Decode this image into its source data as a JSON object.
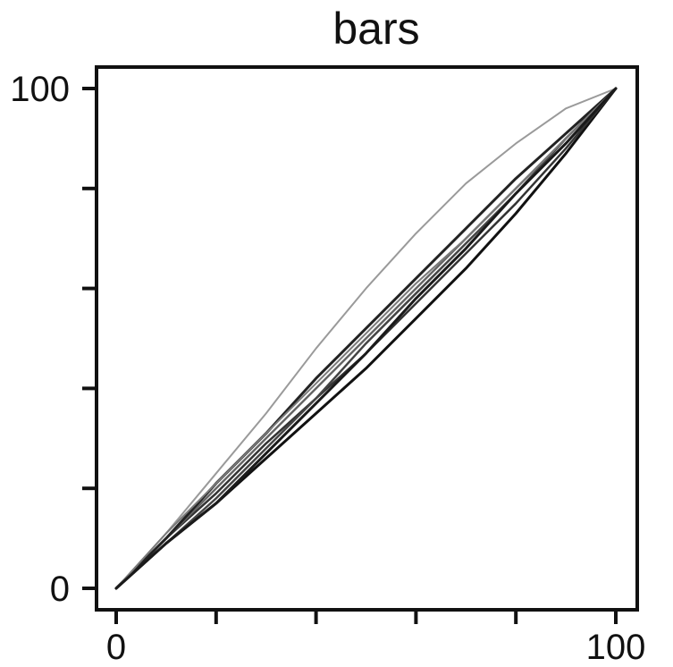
{
  "chart_data": {
    "type": "line",
    "title": "bars",
    "xlabel": "",
    "ylabel": "",
    "xlim": [
      0,
      100
    ],
    "ylim": [
      0,
      100
    ],
    "x_tick_values": [
      0,
      20,
      40,
      60,
      80,
      100
    ],
    "y_tick_values": [
      0,
      20,
      40,
      60,
      80,
      100
    ],
    "x_tick_labels": [
      "0",
      "",
      "",
      "",
      "",
      "100"
    ],
    "y_tick_labels": [
      "0",
      "",
      "",
      "",
      "",
      "100"
    ],
    "grid": false,
    "series": [
      {
        "color": "#9a9a9a",
        "width": 2,
        "points": [
          [
            0,
            0
          ],
          [
            10,
            11
          ],
          [
            20,
            23
          ],
          [
            30,
            35
          ],
          [
            40,
            48
          ],
          [
            50,
            60
          ],
          [
            60,
            71
          ],
          [
            70,
            81
          ],
          [
            80,
            89
          ],
          [
            90,
            96
          ],
          [
            100,
            100
          ]
        ]
      },
      {
        "color": "#111111",
        "width": 3,
        "points": [
          [
            0,
            0
          ],
          [
            10,
            9
          ],
          [
            20,
            17
          ],
          [
            30,
            26
          ],
          [
            40,
            35
          ],
          [
            50,
            44
          ],
          [
            60,
            54
          ],
          [
            70,
            64
          ],
          [
            80,
            75
          ],
          [
            90,
            87
          ],
          [
            100,
            100
          ]
        ]
      },
      {
        "color": "#333333",
        "width": 2.5,
        "points": [
          [
            0,
            0
          ],
          [
            10,
            10
          ],
          [
            20,
            19
          ],
          [
            30,
            29
          ],
          [
            40,
            38
          ],
          [
            50,
            47
          ],
          [
            60,
            57
          ],
          [
            70,
            67
          ],
          [
            80,
            77
          ],
          [
            90,
            88
          ],
          [
            100,
            100
          ]
        ]
      },
      {
        "color": "#666666",
        "width": 2.5,
        "points": [
          [
            0,
            0
          ],
          [
            10,
            10
          ],
          [
            20,
            20
          ],
          [
            30,
            30
          ],
          [
            40,
            40
          ],
          [
            50,
            50
          ],
          [
            60,
            60
          ],
          [
            70,
            70
          ],
          [
            80,
            80
          ],
          [
            90,
            90
          ],
          [
            100,
            100
          ]
        ]
      },
      {
        "color": "#222222",
        "width": 3,
        "points": [
          [
            0,
            0
          ],
          [
            10,
            10
          ],
          [
            20,
            21
          ],
          [
            30,
            31
          ],
          [
            40,
            42
          ],
          [
            50,
            52
          ],
          [
            60,
            62
          ],
          [
            70,
            72
          ],
          [
            80,
            82
          ],
          [
            90,
            91
          ],
          [
            100,
            100
          ]
        ]
      },
      {
        "color": "#444444",
        "width": 2.5,
        "points": [
          [
            0,
            0
          ],
          [
            10,
            9
          ],
          [
            20,
            18
          ],
          [
            30,
            28
          ],
          [
            40,
            38
          ],
          [
            50,
            49
          ],
          [
            60,
            59
          ],
          [
            70,
            69
          ],
          [
            80,
            79
          ],
          [
            90,
            90
          ],
          [
            100,
            100
          ]
        ]
      },
      {
        "color": "#7a7a7a",
        "width": 2,
        "points": [
          [
            0,
            0
          ],
          [
            10,
            11
          ],
          [
            20,
            21
          ],
          [
            30,
            31
          ],
          [
            40,
            41
          ],
          [
            50,
            51
          ],
          [
            60,
            61
          ],
          [
            70,
            70
          ],
          [
            80,
            80
          ],
          [
            90,
            90
          ],
          [
            100,
            100
          ]
        ]
      },
      {
        "color": "#1a1a1a",
        "width": 3,
        "points": [
          [
            0,
            0
          ],
          [
            10,
            9
          ],
          [
            20,
            17
          ],
          [
            30,
            27
          ],
          [
            40,
            37
          ],
          [
            50,
            47
          ],
          [
            60,
            58
          ],
          [
            70,
            68
          ],
          [
            80,
            79
          ],
          [
            90,
            89
          ],
          [
            100,
            100
          ]
        ]
      }
    ]
  }
}
